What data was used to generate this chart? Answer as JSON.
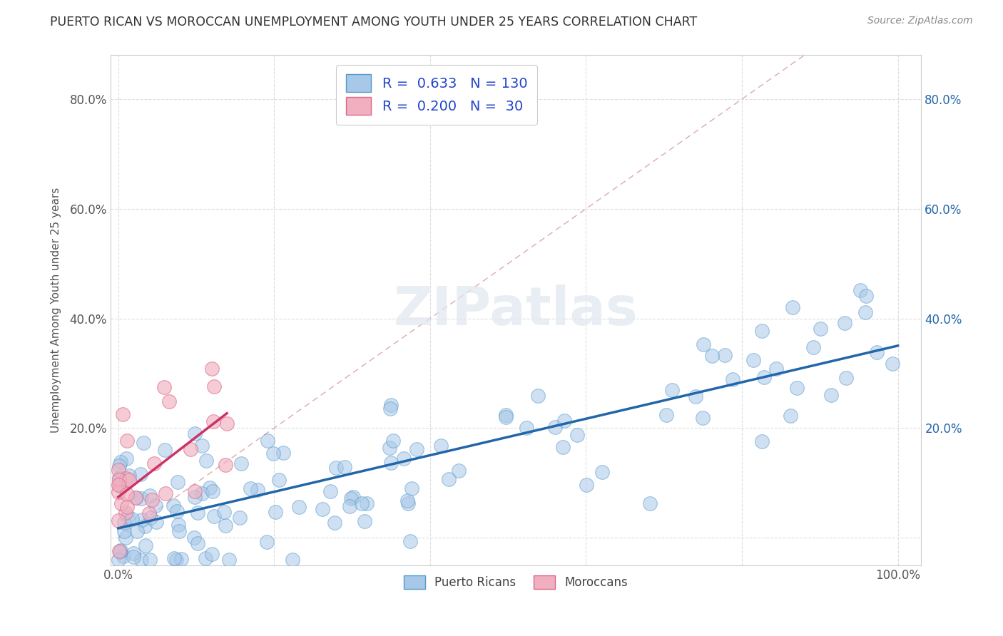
{
  "title": "PUERTO RICAN VS MOROCCAN UNEMPLOYMENT AMONG YOUTH UNDER 25 YEARS CORRELATION CHART",
  "source": "Source: ZipAtlas.com",
  "xlabel": "",
  "ylabel": "Unemployment Among Youth under 25 years",
  "xlim": [
    -0.01,
    1.03
  ],
  "ylim": [
    -0.05,
    0.88
  ],
  "xticks": [
    0.0,
    0.2,
    0.4,
    0.6,
    0.8,
    1.0
  ],
  "xtick_labels": [
    "0.0%",
    "",
    "",
    "",
    "",
    "100.0%"
  ],
  "yticks": [
    0.0,
    0.2,
    0.4,
    0.6,
    0.8
  ],
  "ytick_labels": [
    "",
    "20.0%",
    "40.0%",
    "60.0%",
    "80.0%"
  ],
  "ytick_labels_right": [
    "",
    "20.0%",
    "40.0%",
    "60.0%",
    "80.0%"
  ],
  "pr_circle_color": "#a8c8e8",
  "pr_edge_color": "#5599cc",
  "mo_circle_color": "#f0b0c0",
  "mo_edge_color": "#dd6688",
  "pr_line_color": "#2266aa",
  "mo_line_color": "#cc3366",
  "diag_color": "#ddaaaa",
  "watermark": "ZIPatlas",
  "legend_r_pr": "0.633",
  "legend_n_pr": "130",
  "legend_r_mo": "0.200",
  "legend_n_mo": "30",
  "pr_N": 130,
  "mo_N": 30,
  "title_color": "#333333",
  "axis_label_color": "#555555",
  "tick_color": "#555555",
  "right_tick_color": "#2266aa",
  "grid_color": "#dddddd",
  "legend_label_pr": "Puerto Ricans",
  "legend_label_mo": "Moroccans",
  "legend_text_color": "#2244cc",
  "pr_trend_x_start": 0.0,
  "pr_trend_x_end": 1.0,
  "pr_trend_y_start": 0.02,
  "pr_trend_y_end": 0.35,
  "mo_trend_x_start": 0.0,
  "mo_trend_x_end": 0.18,
  "mo_trend_y_start": 0.04,
  "mo_trend_y_end": 0.275
}
